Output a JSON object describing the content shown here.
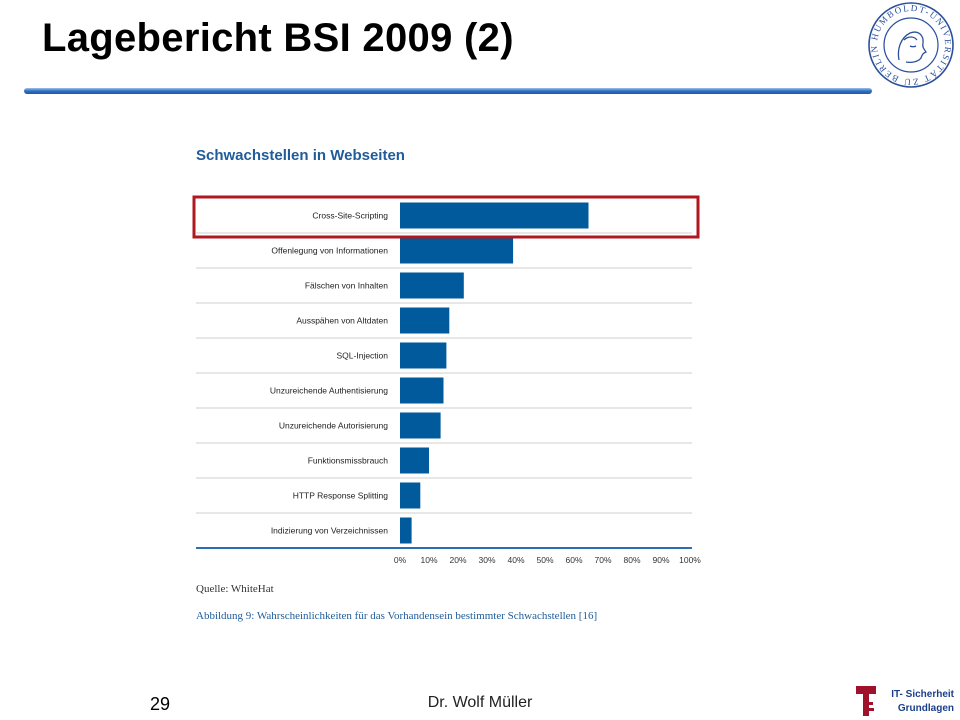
{
  "slide": {
    "title": "Lagebericht BSI 2009 (2)",
    "page_number": "29",
    "author": "Dr. Wolf Müller",
    "course_line1": "IT- Sicherheit",
    "course_line2": "Grundlagen",
    "seal_text": "HUMBOLDT-UNIVERSITÄT ZU BERLIN",
    "seal_icon": "university-seal-portrait",
    "course_icon": "t-key-icon"
  },
  "colors": {
    "bar": "#005a9c",
    "title_rule": "#2f6fc4",
    "highlight": "#b0181f",
    "chart_title": "#1f5c99",
    "caption": "#1f5c99",
    "seal": "#2b4f9e",
    "course_icon": "#a0112b"
  },
  "chart_data": {
    "type": "bar",
    "orientation": "horizontal",
    "title": "Schwachstellen in Webseiten",
    "categories": [
      "Cross-Site-Scripting",
      "Offenlegung von Informationen",
      "Fälschen von Inhalten",
      "Ausspähen von Altdaten",
      "SQL-Injection",
      "Unzureichende Authentisierung",
      "Unzureichende Autorisierung",
      "Funktionsmissbrauch",
      "HTTP Response Splitting",
      "Indizierung von Verzeichnissen"
    ],
    "values": [
      65,
      39,
      22,
      17,
      16,
      15,
      14,
      10,
      7,
      4
    ],
    "xlim": [
      0,
      100
    ],
    "x_ticks": [
      "0%",
      "10%",
      "20%",
      "30%",
      "40%",
      "50%",
      "60%",
      "70%",
      "80%",
      "90%",
      "100%"
    ],
    "highlighted_category": "Cross-Site-Scripting",
    "source": "Quelle: WhiteHat",
    "caption": "Abbildung 9: Wahrscheinlichkeiten für das Vorhandensein bestimmter Schwachstellen [16]",
    "grid": false
  }
}
